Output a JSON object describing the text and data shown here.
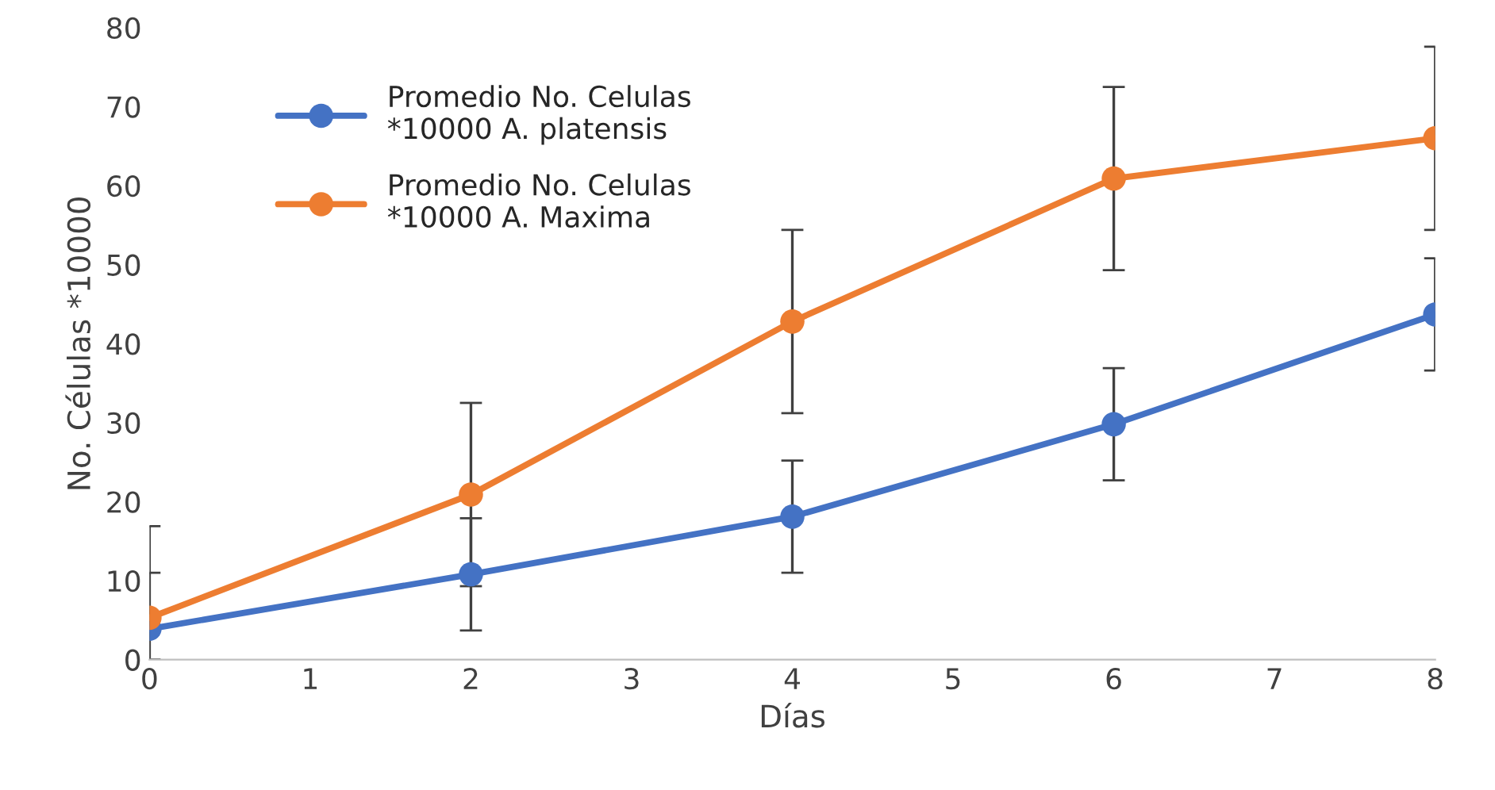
{
  "chart_data": {
    "type": "line",
    "xlabel": "Días",
    "ylabel": "No. Células *10000",
    "x": [
      0,
      2,
      4,
      6,
      8
    ],
    "series": [
      {
        "name": "Promedio No. Celulas\n*10000 A. platensis",
        "color": "#4472c4",
        "values": [
          3.9,
          10.8,
          18.1,
          29.8,
          43.7
        ],
        "errors": [
          [
            0,
            11.0
          ],
          7.1,
          7.1,
          7.1,
          7.1
        ]
      },
      {
        "name": "Promedio No. Celulas\n*10000 A. Maxima",
        "color": "#ed7d31",
        "values": [
          5.3,
          20.9,
          42.8,
          60.9,
          66.0
        ],
        "errors": [
          [
            0,
            16.9
          ],
          11.6,
          11.6,
          11.6,
          11.6
        ]
      }
    ],
    "xlim": [
      0,
      8
    ],
    "xticks": [
      0,
      1,
      2,
      3,
      4,
      5,
      6,
      7,
      8
    ],
    "ylim": [
      0,
      80
    ],
    "yticks": [
      0,
      10,
      20,
      30,
      40,
      50,
      60,
      70,
      80
    ],
    "grid": false,
    "legend": "top left",
    "marker": "circle",
    "line_style": "solid"
  }
}
